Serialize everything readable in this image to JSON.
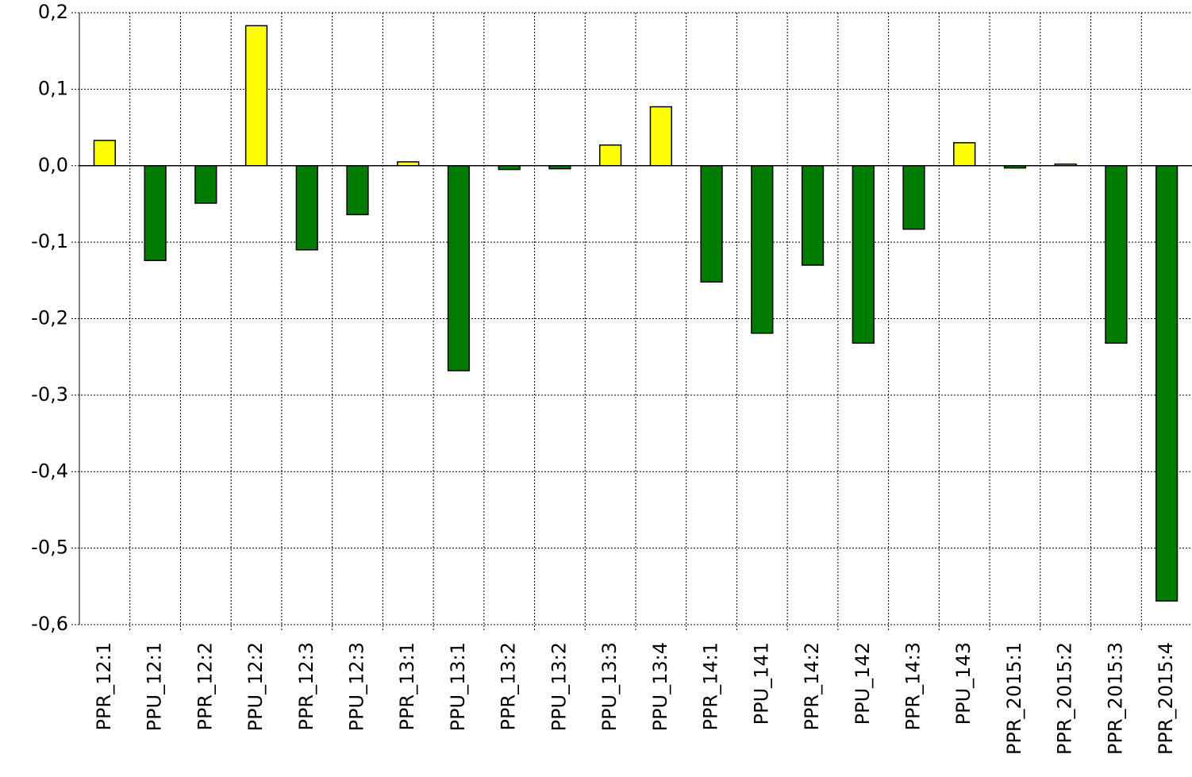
{
  "chart_data": {
    "type": "bar",
    "categories": [
      "PPR_12:1",
      "PPU_12:1",
      "PPR_12:2",
      "PPU_12:2",
      "PPR_12:3",
      "PPU_12:3",
      "PPR_13:1",
      "PPU_13:1",
      "PPR_13:2",
      "PPU_13:2",
      "PPU_13:3",
      "PPU_13:4",
      "PPR_14:1",
      "PPU_141",
      "PPR_14:2",
      "PPU_142",
      "PPR_14:3",
      "PPU_143",
      "PPR_2015:1",
      "PPR_2015:2",
      "PPR_2015:3",
      "PPR_2015:4"
    ],
    "values": [
      0.033,
      -0.124,
      -0.049,
      0.183,
      -0.11,
      -0.064,
      0.005,
      -0.268,
      -0.005,
      -0.004,
      0.027,
      0.077,
      -0.152,
      -0.219,
      -0.13,
      -0.232,
      -0.083,
      0.03,
      -0.003,
      0.002,
      -0.232,
      -0.569
    ],
    "positive_color": "#ffff00",
    "negative_color": "#007c00",
    "ylim": [
      -0.6,
      0.2
    ],
    "yticks": [
      {
        "value": -0.6,
        "label": "-0,6"
      },
      {
        "value": -0.5,
        "label": "-0,5"
      },
      {
        "value": -0.4,
        "label": "-0,4"
      },
      {
        "value": -0.3,
        "label": "-0,3"
      },
      {
        "value": -0.2,
        "label": "-0,2"
      },
      {
        "value": -0.1,
        "label": "-0,1"
      },
      {
        "value": 0,
        "label": "0,0"
      },
      {
        "value": 0.1,
        "label": "0,1"
      },
      {
        "value": 0.2,
        "label": "0,2"
      }
    ],
    "grid": true
  }
}
